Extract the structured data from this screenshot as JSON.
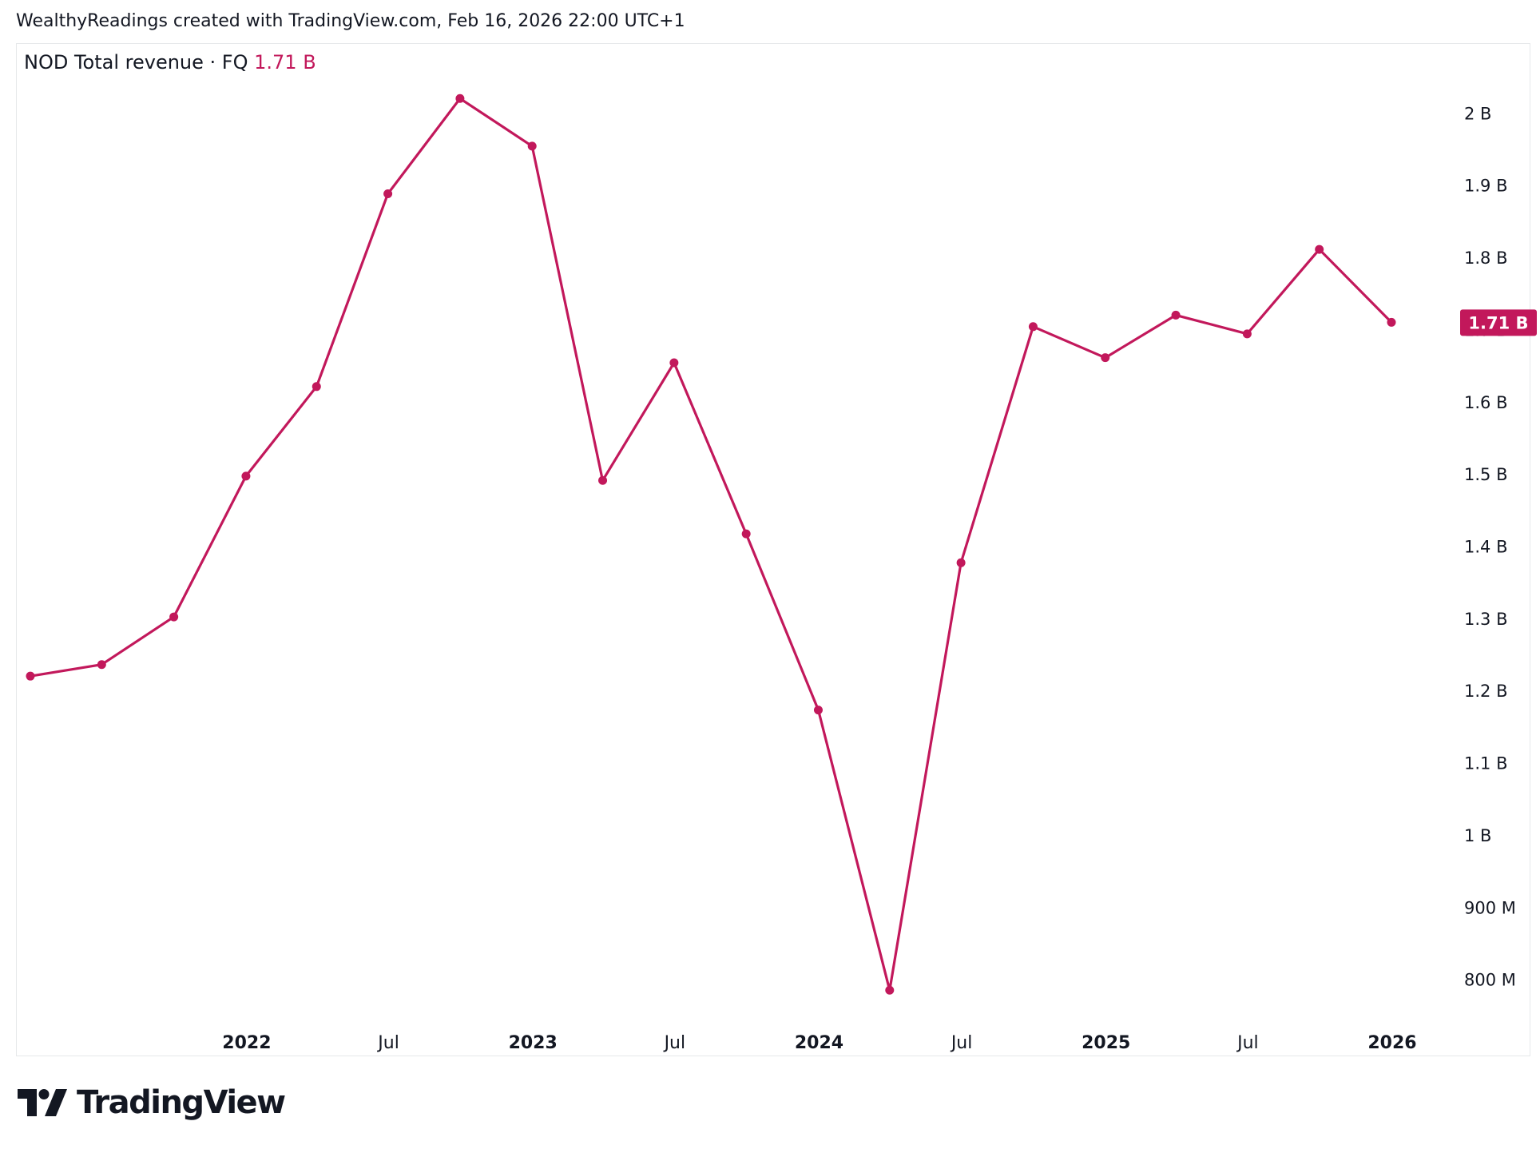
{
  "attribution": "WealthyReadings created with TradingView.com, Feb 16, 2026 22:00 UTC+1",
  "legend": {
    "symbol_title": "NOD Total revenue · FQ",
    "last_value": "1.71 B"
  },
  "brand": {
    "name": "TradingView",
    "logo_icon": "tradingview-logo-icon"
  },
  "colors": {
    "series": "#c2185b",
    "text": "#131722",
    "border": "#e6e8ea",
    "badge_text": "#ffffff"
  },
  "chart_data": {
    "type": "line",
    "title": "NOD Total revenue · FQ",
    "grid": false,
    "x_range": [
      "2021-03-31",
      "2025-12-31"
    ],
    "y_range": [
      720000000,
      2090000000
    ],
    "series": [
      {
        "name": "NOD Total revenue · FQ",
        "points": [
          {
            "x": "2021-03-31",
            "y": 1220000000
          },
          {
            "x": "2021-06-30",
            "y": 1236000000
          },
          {
            "x": "2021-09-30",
            "y": 1302000000
          },
          {
            "x": "2021-12-31",
            "y": 1497000000
          },
          {
            "x": "2022-03-31",
            "y": 1621000000
          },
          {
            "x": "2022-06-30",
            "y": 1888000000
          },
          {
            "x": "2022-09-30",
            "y": 2020000000
          },
          {
            "x": "2022-12-31",
            "y": 1954000000
          },
          {
            "x": "2023-03-31",
            "y": 1491000000
          },
          {
            "x": "2023-06-30",
            "y": 1654000000
          },
          {
            "x": "2023-09-30",
            "y": 1417000000
          },
          {
            "x": "2023-12-31",
            "y": 1173000000
          },
          {
            "x": "2024-03-31",
            "y": 785000000
          },
          {
            "x": "2024-06-30",
            "y": 1377000000
          },
          {
            "x": "2024-09-30",
            "y": 1704000000
          },
          {
            "x": "2024-12-31",
            "y": 1661000000
          },
          {
            "x": "2025-03-31",
            "y": 1720000000
          },
          {
            "x": "2025-06-30",
            "y": 1694000000
          },
          {
            "x": "2025-09-30",
            "y": 1811000000
          },
          {
            "x": "2025-12-31",
            "y": 1710000000
          }
        ]
      }
    ],
    "y_ticks": [
      {
        "value": 2000000000,
        "label": "2 B"
      },
      {
        "value": 1900000000,
        "label": "1.9 B"
      },
      {
        "value": 1800000000,
        "label": "1.8 B"
      },
      {
        "value": 1700000000,
        "label": "1.7 B"
      },
      {
        "value": 1600000000,
        "label": "1.6 B"
      },
      {
        "value": 1500000000,
        "label": "1.5 B"
      },
      {
        "value": 1400000000,
        "label": "1.4 B"
      },
      {
        "value": 1300000000,
        "label": "1.3 B"
      },
      {
        "value": 1200000000,
        "label": "1.2 B"
      },
      {
        "value": 1100000000,
        "label": "1.1 B"
      },
      {
        "value": 1000000000,
        "label": "1 B"
      },
      {
        "value": 900000000,
        "label": "900 M"
      },
      {
        "value": 800000000,
        "label": "800 M"
      }
    ],
    "x_ticks": [
      {
        "x": "2022-01-01",
        "label": "2022",
        "bold": true
      },
      {
        "x": "2022-07-01",
        "label": "Jul",
        "bold": false
      },
      {
        "x": "2023-01-01",
        "label": "2023",
        "bold": true
      },
      {
        "x": "2023-07-01",
        "label": "Jul",
        "bold": false
      },
      {
        "x": "2024-01-01",
        "label": "2024",
        "bold": true
      },
      {
        "x": "2024-07-01",
        "label": "Jul",
        "bold": false
      },
      {
        "x": "2025-01-01",
        "label": "2025",
        "bold": true
      },
      {
        "x": "2025-07-01",
        "label": "Jul",
        "bold": false
      },
      {
        "x": "2026-01-01",
        "label": "2026",
        "bold": true
      }
    ],
    "last_value_badge": {
      "value": 1710000000,
      "label": "1.71 B"
    }
  }
}
